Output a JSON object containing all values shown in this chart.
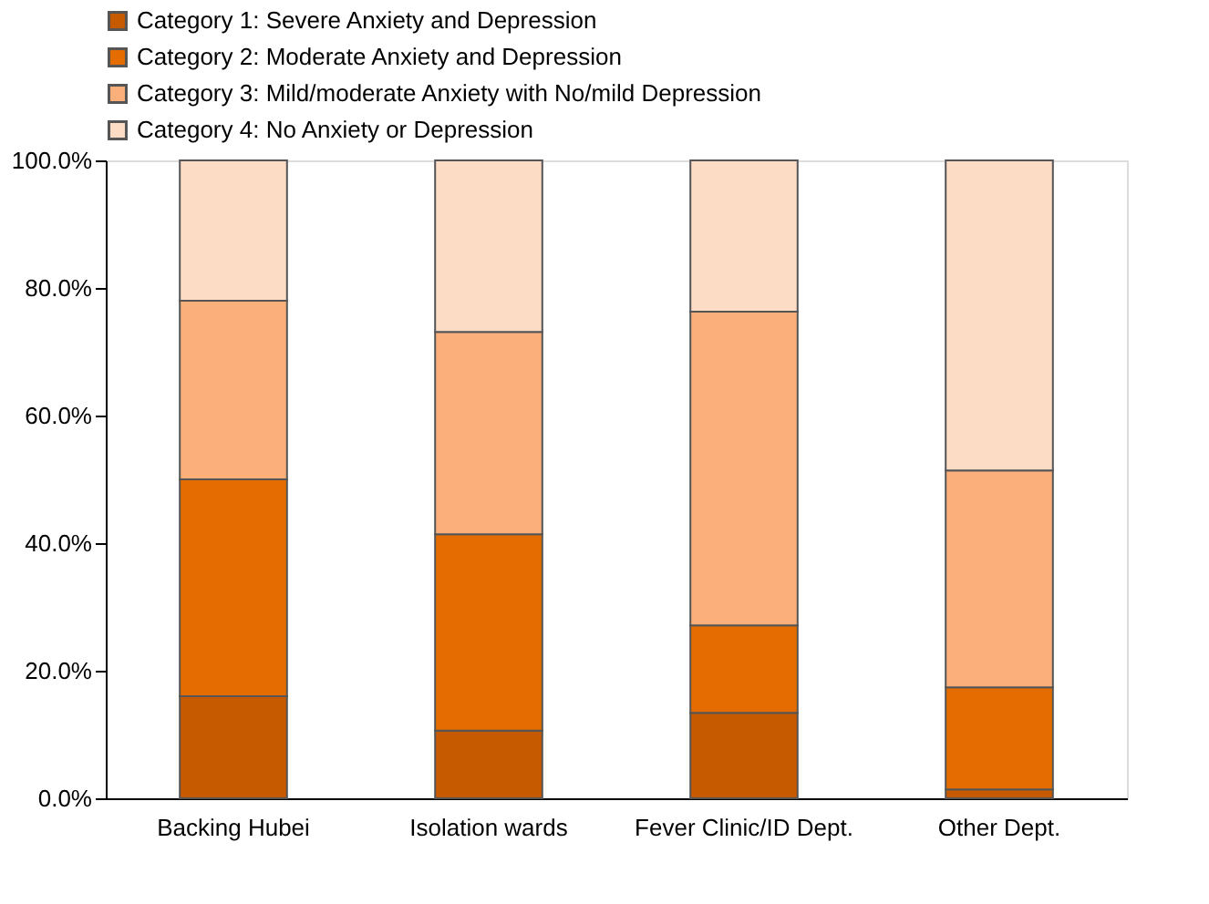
{
  "chart_data": {
    "type": "bar",
    "stacked": true,
    "categories": [
      "Backing Hubei",
      "Isolation wards",
      "Fever Clinic/ID Dept.",
      "Other Dept."
    ],
    "series": [
      {
        "name": "Category 1: Severe Anxiety and Depression",
        "color": "#c55a00",
        "values": [
          16.0,
          10.6,
          13.4,
          1.4
        ]
      },
      {
        "name": "Category 2: Moderate Anxiety and Depression",
        "color": "#e46c00",
        "values": [
          34.0,
          30.8,
          13.7,
          16.0
        ]
      },
      {
        "name": "Category 3: Mild/moderate Anxiety with No/mild Depression",
        "color": "#fbb07c",
        "values": [
          28.0,
          31.7,
          49.2,
          34.0
        ]
      },
      {
        "name": "Category 4: No Anxiety or Depression",
        "color": "#fddcc6",
        "values": [
          22.0,
          26.9,
          23.7,
          48.6
        ]
      }
    ],
    "ylim": [
      0,
      100
    ],
    "yticks": [
      {
        "value": 0,
        "label": "0.0%"
      },
      {
        "value": 20,
        "label": "20.0%"
      },
      {
        "value": 40,
        "label": "40.0%"
      },
      {
        "value": 60,
        "label": "60.0%"
      },
      {
        "value": 80,
        "label": "80.0%"
      },
      {
        "value": 100,
        "label": "100.0%"
      }
    ],
    "grid": false,
    "legend": "top"
  }
}
